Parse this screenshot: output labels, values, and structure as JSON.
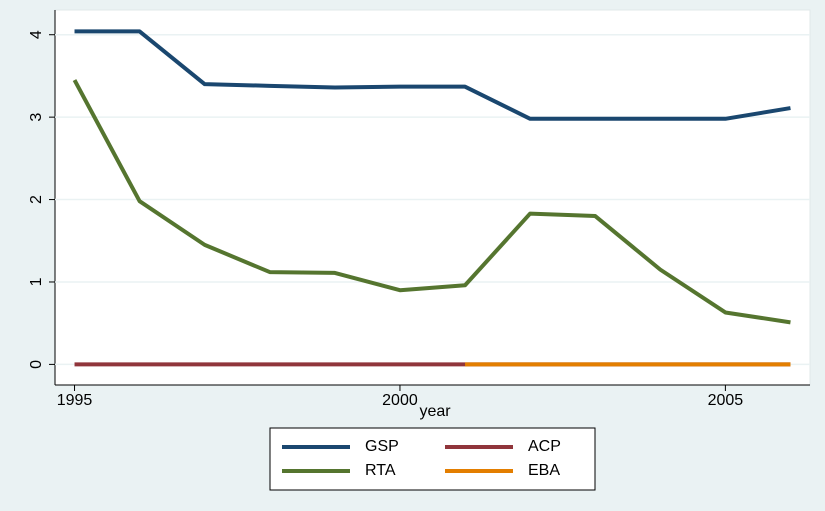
{
  "chart_data": {
    "type": "line",
    "x_label": "year",
    "x": [
      1995,
      1996,
      1997,
      1998,
      1999,
      2000,
      2001,
      2002,
      2003,
      2004,
      2005,
      2006
    ],
    "series": [
      {
        "name": "GSP",
        "color": "#1a476f",
        "values": [
          4.04,
          4.04,
          3.4,
          3.38,
          3.36,
          3.37,
          3.37,
          2.98,
          2.98,
          2.98,
          2.98,
          3.11
        ]
      },
      {
        "name": "RTA",
        "color": "#55752f",
        "values": [
          3.45,
          1.98,
          1.45,
          1.12,
          1.11,
          0.9,
          0.96,
          1.83,
          1.8,
          1.15,
          0.63,
          0.51
        ]
      },
      {
        "name": "ACP",
        "color": "#90353b",
        "values": [
          0,
          0,
          0,
          0,
          0,
          0,
          0,
          0,
          0,
          0,
          0,
          0
        ]
      },
      {
        "name": "EBA",
        "color": "#e37e00",
        "values": [
          null,
          null,
          null,
          null,
          null,
          null,
          0,
          0,
          0,
          0,
          0,
          0
        ]
      }
    ],
    "xlim": [
      1994.7,
      2006.3
    ],
    "xticks": [
      1995,
      2000,
      2005
    ],
    "ylim": [
      -0.25,
      4.3
    ],
    "yticks": [
      0,
      1,
      2,
      3,
      4
    ],
    "grid": true,
    "legend_position": "bottom"
  }
}
